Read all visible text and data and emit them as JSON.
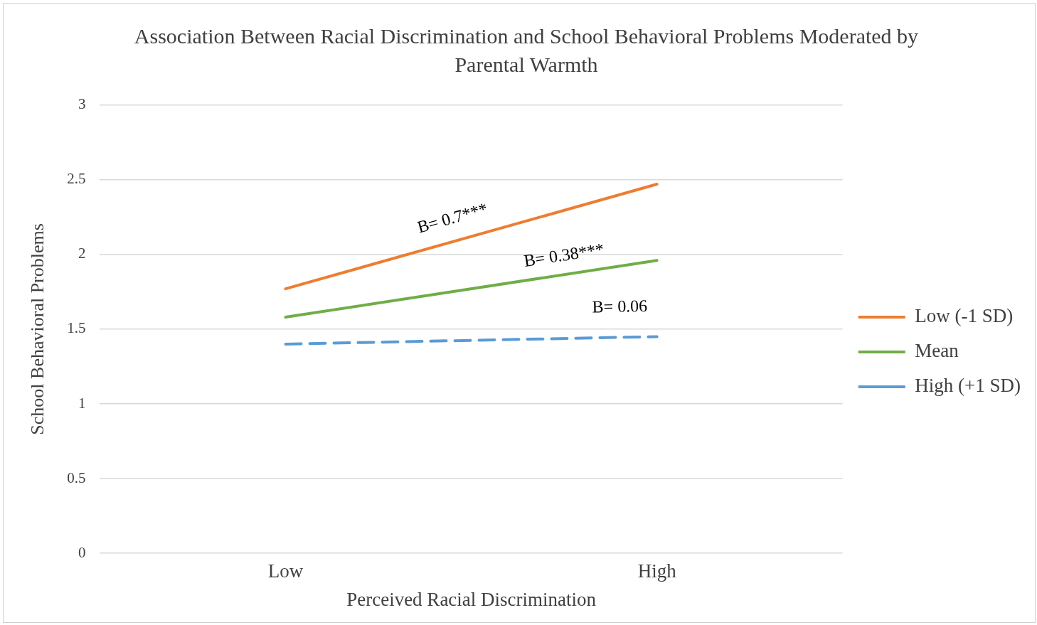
{
  "chart_data": {
    "type": "line",
    "title": "Association Between Racial Discrimination and School Behavioral Problems Moderated by Parental Warmth",
    "xlabel": "Perceived Racial Discrimination",
    "ylabel": "School Behavioral Problems",
    "categories": [
      "Low",
      "High"
    ],
    "series": [
      {
        "name": "Low (-1 SD)",
        "color": "#ed7d31",
        "values": [
          1.77,
          2.47
        ],
        "line_style": "solid"
      },
      {
        "name": "Mean",
        "color": "#70ad47",
        "values": [
          1.58,
          1.96
        ],
        "line_style": "solid"
      },
      {
        "name": "High (+1 SD)",
        "color": "#5b9bd5",
        "values": [
          1.4,
          1.45
        ],
        "line_style": "dashed"
      }
    ],
    "ylim": [
      0,
      3
    ],
    "yticks": [
      0,
      0.5,
      1,
      1.5,
      2,
      2.5,
      3
    ],
    "grid": "y",
    "legend": "right",
    "marker": "none",
    "annotations": [
      "B= 0.7***",
      "B= 0.38***",
      "B= 0.06"
    ]
  }
}
